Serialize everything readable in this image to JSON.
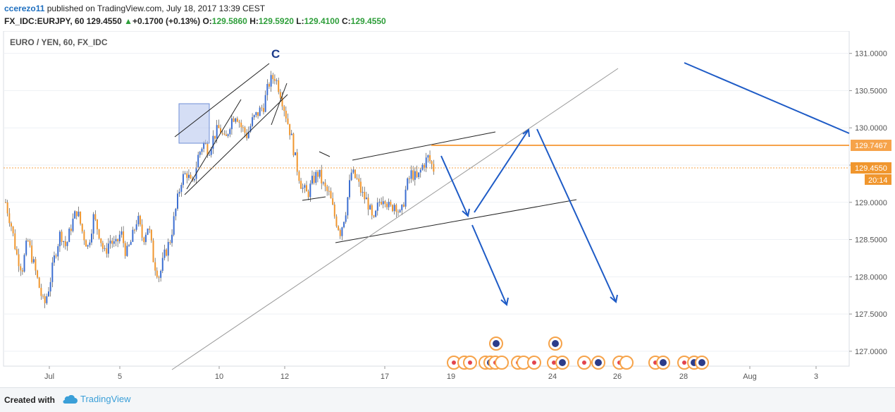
{
  "header": {
    "user": "ccerezo11",
    "published": " published on TradingView.com, July 18, 2017 13:39 CEST",
    "symbol": "FX_IDC:EURJPY, 60",
    "price": "129.4550",
    "change": "+0.1700 (+0.13%)",
    "o_label": "O:",
    "o_val": "129.5860",
    "h_label": "H:",
    "h_val": "129.5920",
    "l_label": "L:",
    "l_val": "129.4100",
    "c_label": "C:",
    "c_val": "129.4550"
  },
  "footer": {
    "created": "Created with",
    "brand": "TradingView"
  },
  "colors": {
    "up": "#3d6fd1",
    "down": "#f0962e",
    "trend": "#1e5bc6",
    "orange_line": "#f6a34a",
    "grid": "#eef1f5"
  },
  "chart_data": {
    "type": "candlestick",
    "title": "EURO / YEN, 60, FX_IDC",
    "ylim": [
      126.8,
      131.3
    ],
    "y_ticks": [
      "131.0000",
      "130.5000",
      "130.0000",
      "129.5000",
      "129.0000",
      "128.5000",
      "128.0000",
      "127.5000",
      "127.0000"
    ],
    "x_ticks": [
      "Jul",
      "5",
      "10",
      "12",
      "17",
      "19",
      "24",
      "26",
      "28",
      "Aug",
      "3"
    ],
    "wave_label": "C",
    "price_labels": [
      {
        "text": "129.7467",
        "y": 129.7467
      },
      {
        "text": "129.4550",
        "y": 129.455
      },
      {
        "text": "20:14"
      }
    ],
    "series": [
      {
        "values": [
          129.0,
          128.7,
          128.3,
          128.1,
          128.5,
          128.2,
          127.9,
          127.6,
          127.9,
          128.3,
          128.6,
          128.4,
          128.7,
          128.9,
          128.6,
          128.4,
          128.8,
          128.6,
          128.3,
          128.5,
          128.4,
          128.6,
          128.3,
          128.5,
          128.8,
          128.5,
          128.7,
          128.2,
          128.0,
          128.3,
          128.5,
          128.9,
          129.3,
          129.4,
          129.2,
          129.6,
          129.8,
          129.7,
          129.9,
          130.0,
          129.8,
          130.1,
          130.2,
          130.0,
          129.9,
          130.1,
          130.2,
          130.3,
          130.6,
          130.7,
          130.5,
          130.2,
          129.9,
          129.5,
          129.2,
          129.1,
          129.3,
          129.4,
          129.2,
          129.1,
          128.8,
          128.6,
          128.9,
          129.4,
          129.3,
          129.1,
          129.0,
          128.7,
          129.0,
          129.1,
          128.9,
          129.0,
          128.8,
          129.2,
          129.4,
          129.3,
          129.5,
          129.6,
          129.45
        ]
      }
    ]
  }
}
